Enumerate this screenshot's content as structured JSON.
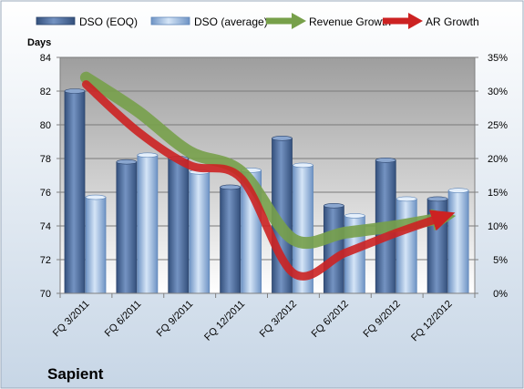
{
  "chart_data": {
    "type": "bar",
    "company": "Sapient",
    "left_axis_label": "Days",
    "categories": [
      "FQ 3/2011",
      "FQ 6/2011",
      "FQ 9/2011",
      "FQ 12/2011",
      "FQ 3/2012",
      "FQ 6/2012",
      "FQ 9/2012",
      "FQ 12/2012"
    ],
    "series": [
      {
        "name": "DSO (EOQ)",
        "axis": "left",
        "kind": "bar",
        "color": "#4f6fa0",
        "values": [
          82.0,
          77.8,
          78.0,
          76.3,
          79.2,
          75.2,
          77.9,
          75.6
        ]
      },
      {
        "name": "DSO (average)",
        "axis": "left",
        "kind": "bar",
        "color": "#a9c5e8",
        "values": [
          75.7,
          78.2,
          77.2,
          77.3,
          77.6,
          74.6,
          75.6,
          76.1
        ]
      },
      {
        "name": "Revenue Growth",
        "axis": "right",
        "kind": "line",
        "color": "#77a04a",
        "values": [
          32,
          27,
          21,
          18,
          8,
          9,
          10,
          11
        ]
      },
      {
        "name": "AR Growth",
        "axis": "right",
        "kind": "line",
        "color": "#cc2222",
        "values": [
          31,
          24,
          19,
          17,
          3,
          6,
          9,
          11
        ]
      }
    ],
    "left_ylim": [
      70,
      84
    ],
    "left_ticks": [
      70,
      72,
      74,
      76,
      78,
      80,
      82,
      84
    ],
    "right_ylim": [
      0,
      35
    ],
    "right_ticks": [
      "0%",
      "5%",
      "10%",
      "15%",
      "20%",
      "25%",
      "30%",
      "35%"
    ],
    "grid": true,
    "legend_position": "top"
  }
}
